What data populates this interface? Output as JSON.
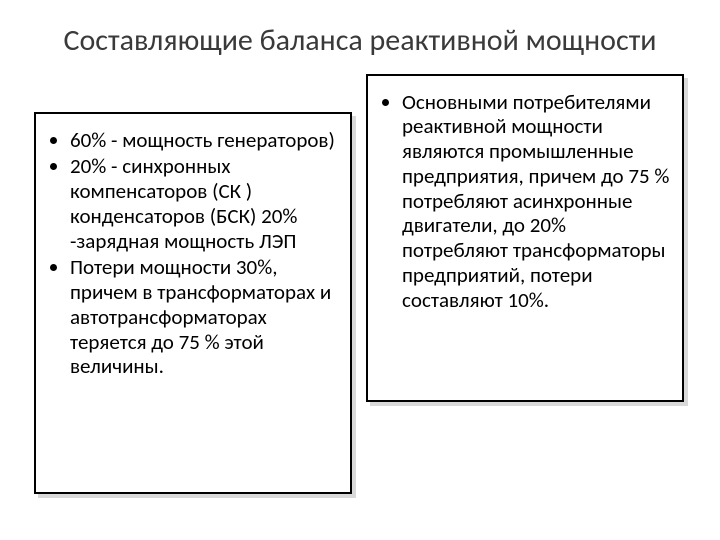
{
  "title": "Составляющие баланса реактивной мощности",
  "left": {
    "items": [
      " 60%  - мощность генераторов)",
      "20%  - синхронных компенсаторов (СК ) конденсаторов (БСК) 20% -зарядная мощность ЛЭП",
      "Потери мощности 30%, причем в трансформаторах и автотрансформаторах теряется до 75 % этой величины."
    ]
  },
  "right": {
    "items": [
      "Основными потребителями реактивной мощности являются промышленные предприятия, причем до 75 % потребляют асинхронные двигатели, до 20% потребляют трансформаторы предприятий, потери составляют 10%."
    ]
  },
  "style": {
    "background_color": "#ffffff",
    "text_color": "#000000",
    "title_color": "#3a3a3a",
    "border_color": "#000000",
    "shadow_color": "rgba(0,0,0,0.15)",
    "title_fontsize": 30,
    "body_fontsize": 21
  }
}
